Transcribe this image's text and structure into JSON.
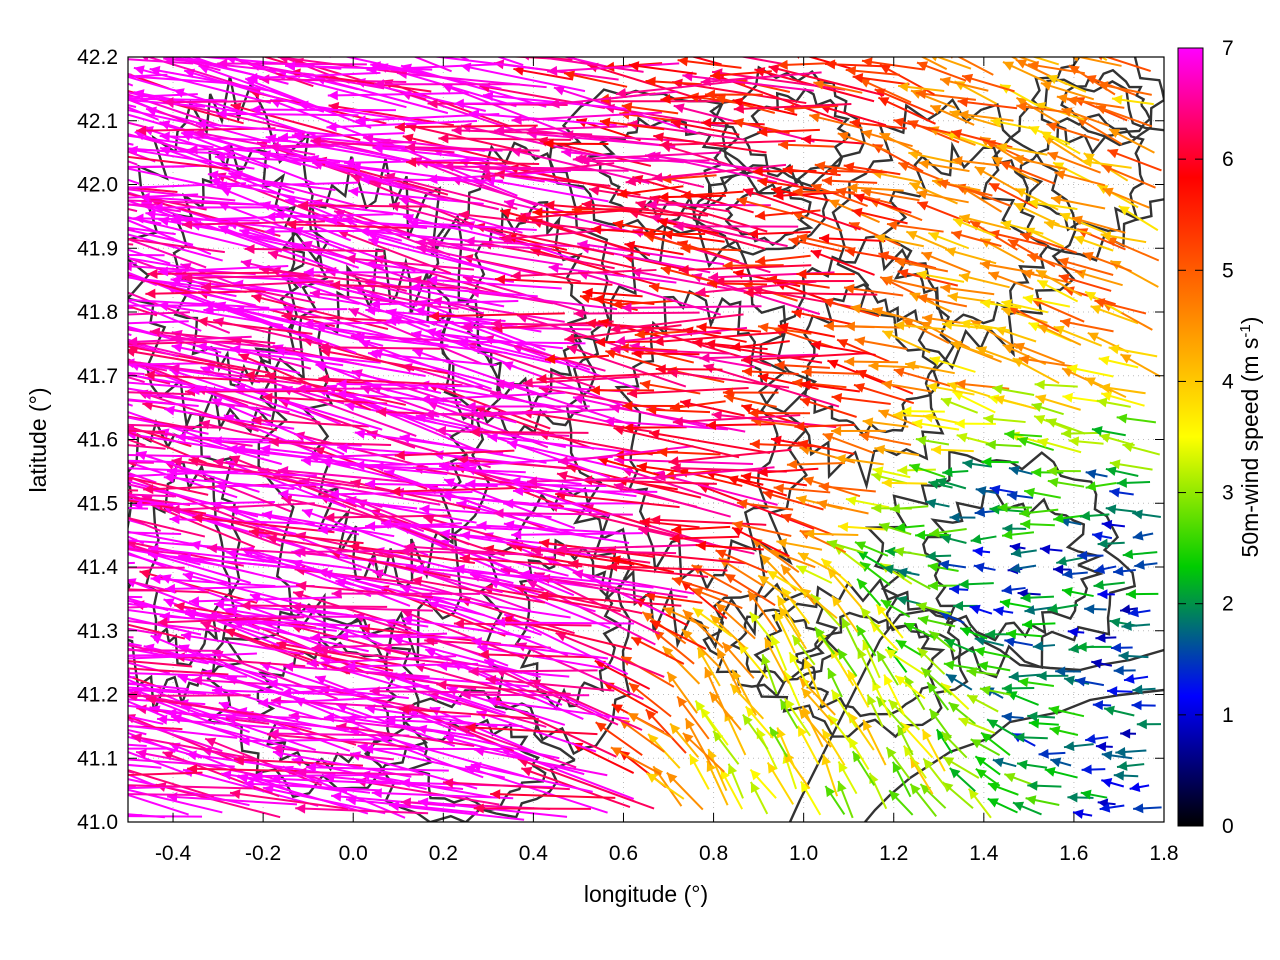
{
  "chart_data": {
    "type": "vector-field",
    "xlabel": "longitude (°)",
    "ylabel": "latitude (°)",
    "xlim": [
      -0.5,
      1.8
    ],
    "ylim": [
      41.0,
      42.2
    ],
    "x_ticks": [
      "-0.4",
      "-0.2",
      "0.0",
      "0.2",
      "0.4",
      "0.6",
      "0.8",
      "1.0",
      "1.2",
      "1.4",
      "1.6",
      "1.8"
    ],
    "y_ticks": [
      "41.0",
      "41.1",
      "41.2",
      "41.3",
      "41.4",
      "41.5",
      "41.6",
      "41.7",
      "41.8",
      "41.9",
      "42.0",
      "42.1",
      "42.2"
    ],
    "grid": true,
    "colorbar": {
      "label_main": "50m-wind speed (m s",
      "label_sup": "-1",
      "label_close": ")",
      "range": [
        0,
        7
      ],
      "ticks": [
        "0",
        "1",
        "2",
        "3",
        "4",
        "5",
        "6",
        "7"
      ],
      "palette": [
        "#000000",
        "#0000ff",
        "#00cc00",
        "#ffff00",
        "#ff8000",
        "#ff0000",
        "#ff00ff"
      ]
    },
    "contour_color": "#333333",
    "approximate_regions": [
      {
        "lon_range": [
          -0.5,
          0.6
        ],
        "lat_range": [
          41.0,
          42.2
        ],
        "speed": 7,
        "direction_deg_from_east": 170
      },
      {
        "lon_range": [
          0.6,
          1.2
        ],
        "lat_range": [
          41.5,
          42.2
        ],
        "speed": 6,
        "direction_deg_from_east": 175
      },
      {
        "lon_range": [
          1.2,
          1.8
        ],
        "lat_range": [
          41.6,
          42.2
        ],
        "speed": 4.5,
        "direction_deg_from_east": 160
      },
      {
        "lon_range": [
          1.3,
          1.8
        ],
        "lat_range": [
          41.1,
          41.6
        ],
        "speed": 1.5,
        "direction_deg_from_east": 180
      },
      {
        "lon_range": [
          0.9,
          1.4
        ],
        "lat_range": [
          41.0,
          41.3
        ],
        "speed": 3.5,
        "direction_deg_from_east": 120
      }
    ]
  }
}
